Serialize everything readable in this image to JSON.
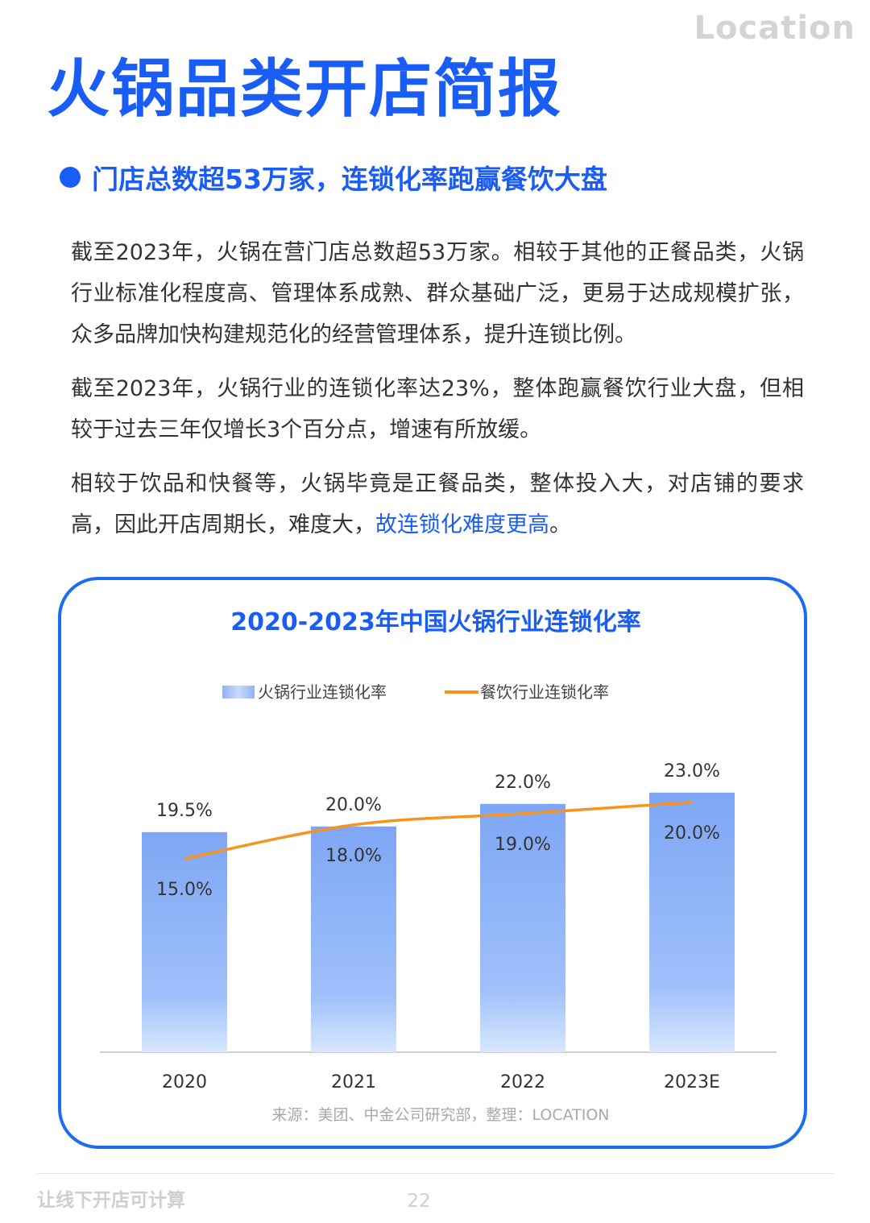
{
  "header": {
    "logo": "Location",
    "title": "火锅品类开店简报"
  },
  "section": {
    "heading": "门店总数超53万家，连锁化率跑赢餐饮大盘"
  },
  "body": {
    "p1": "截至2023年，火锅在营门店总数超53万家。相较于其他的正餐品类，火锅行业标准化程度高、管理体系成熟、群众基础广泛，更易于达成规模扩张，众多品牌加快构建规范化的经营管理体系，提升连锁比例。",
    "p2": "截至2023年，火锅行业的连锁化率达23%，整体跑赢餐饮行业大盘，但相较于过去三年仅增长3个百分点，增速有所放缓。",
    "p3_plain": "相较于饮品和快餐等，火锅毕竟是正餐品类，整体投入大，对店铺的要求高，因此开店周期长，难度大，",
    "p3_highlight": "故连锁化难度更高",
    "p3_end": "。"
  },
  "chart_data": {
    "type": "bar",
    "title": "2020-2023年中国火锅行业连锁化率",
    "categories": [
      "2020",
      "2021",
      "2022",
      "2023E"
    ],
    "series": [
      {
        "name": "火锅行业连锁化率",
        "type": "bar",
        "values": [
          19.5,
          20.0,
          22.0,
          23.0
        ],
        "labels": [
          "19.5%",
          "20.0%",
          "22.0%",
          "23.0%"
        ],
        "color": "#7ea6f4"
      },
      {
        "name": "餐饮行业连锁化率",
        "type": "line",
        "values": [
          15.0,
          18.0,
          19.0,
          20.0
        ],
        "labels": [
          "15.0%",
          "18.0%",
          "19.0%",
          "20.0%"
        ],
        "color": "#f7931e"
      }
    ],
    "ylim": [
      0,
      26
    ],
    "legend_position": "top",
    "grid": false,
    "source": "来源：美团、中金公司研究部，整理：LOCATION"
  },
  "footer": {
    "slogan": "让线下开店可计算",
    "page_number": "22"
  },
  "colors": {
    "accent": "#1a5df5",
    "text": "#333333",
    "muted": "#cfcfcf"
  }
}
